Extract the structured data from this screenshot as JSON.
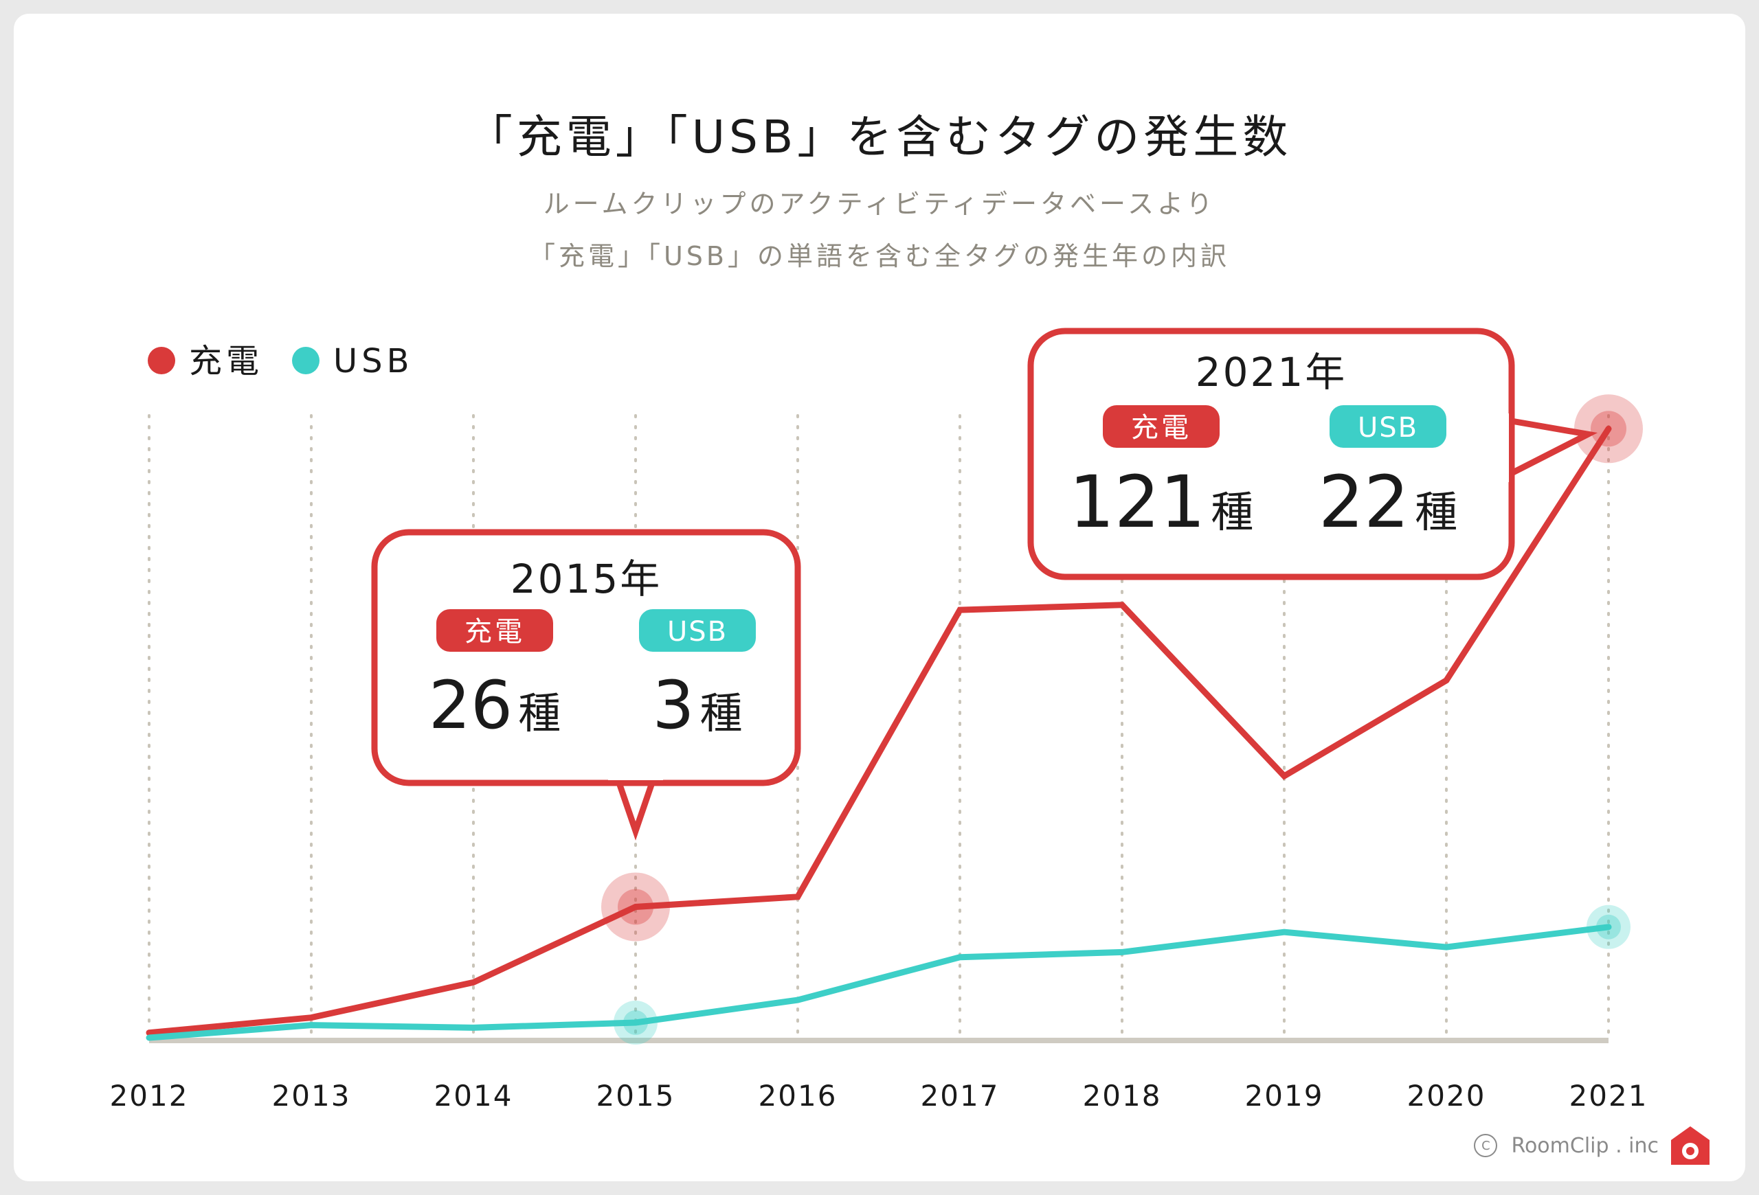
{
  "title": "「充電」「USB」を含むタグの発生数",
  "subtitle_lines": [
    "ルームクリップのアクティビティデータベースより",
    "「充電」「USB」の単語を含む全タグの発生年の内訳"
  ],
  "colors": {
    "charge": "#d93a3a",
    "usb": "#3dcfc7",
    "axis": "#cfcbc2",
    "grid": "#c9c4b8",
    "text": "#1a1a1a",
    "subtitle": "#8e8a80"
  },
  "chart_data": {
    "type": "line",
    "title": "「充電」「USB」を含むタグの発生数",
    "x": [
      "2012",
      "2013",
      "2014",
      "2015",
      "2016",
      "2017",
      "2018",
      "2019",
      "2020",
      "2021"
    ],
    "series": [
      {
        "name": "充電",
        "color": "#d93a3a",
        "values": [
          1,
          4,
          11,
          26,
          28,
          85,
          86,
          52,
          71,
          121
        ]
      },
      {
        "name": "USB",
        "color": "#3dcfc7",
        "values": [
          0,
          2.5,
          2,
          3,
          7.5,
          16,
          17,
          21,
          18,
          22
        ]
      }
    ],
    "ylim": [
      0,
      125
    ],
    "grid": "vertical-dotted",
    "legend": "top-left",
    "highlight_years": [
      "2015",
      "2021"
    ],
    "annotations": [
      {
        "year_label": "2015年",
        "charge_tag": "充電",
        "usb_tag": "USB",
        "charge_number": "26",
        "charge_unit": "種",
        "usb_number": "3",
        "usb_unit": "種"
      },
      {
        "year_label": "2021年",
        "charge_tag": "充電",
        "usb_tag": "USB",
        "charge_number": "121",
        "charge_unit": "種",
        "usb_number": "22",
        "usb_unit": "種"
      }
    ]
  },
  "footer": {
    "copyright": "RoomClip . inc",
    "logo_icon": "roomclip-house-logo-icon"
  }
}
